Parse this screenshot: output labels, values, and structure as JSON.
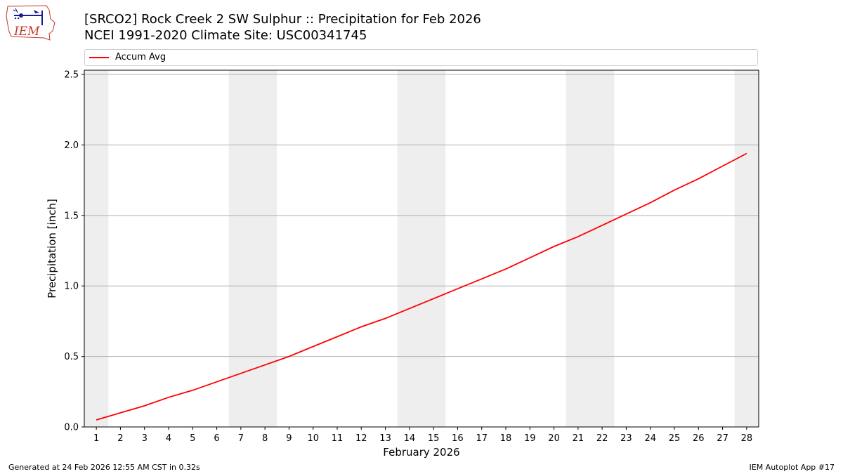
{
  "header": {
    "title_line1": "[SRCO2] Rock Creek 2 SW Sulphur :: Precipitation for Feb 2026",
    "title_line2": "NCEI 1991-2020 Climate Site: USC00341745",
    "logo_text": "IEM"
  },
  "footer": {
    "left": "Generated at 24 Feb 2026 12:55 AM CST in 0.32s",
    "right": "IEM Autoplot App #17"
  },
  "chart_data": {
    "type": "line",
    "xlabel": "February 2026",
    "ylabel": "Precipitation [inch]",
    "x": [
      1,
      2,
      3,
      4,
      5,
      6,
      7,
      8,
      9,
      10,
      11,
      12,
      13,
      14,
      15,
      16,
      17,
      18,
      19,
      20,
      21,
      22,
      23,
      24,
      25,
      26,
      27,
      28
    ],
    "xlim": [
      0.5,
      28.5
    ],
    "ylim": [
      0,
      2.53
    ],
    "yticks": [
      0.0,
      0.5,
      1.0,
      1.5,
      2.0,
      2.5
    ],
    "ytick_labels": [
      "0.0",
      "0.5",
      "1.0",
      "1.5",
      "2.0",
      "2.5"
    ],
    "grid": "horizontal",
    "weekend_shading": [
      [
        0.5,
        1.5
      ],
      [
        6.5,
        8.5
      ],
      [
        13.5,
        15.5
      ],
      [
        20.5,
        22.5
      ],
      [
        27.5,
        28.5
      ]
    ],
    "legend_position": "top",
    "series": [
      {
        "name": "Accum Avg",
        "color": "#ff0000",
        "values": [
          0.05,
          0.1,
          0.15,
          0.21,
          0.26,
          0.32,
          0.38,
          0.44,
          0.5,
          0.57,
          0.64,
          0.71,
          0.77,
          0.84,
          0.91,
          0.98,
          1.05,
          1.12,
          1.2,
          1.28,
          1.35,
          1.43,
          1.51,
          1.59,
          1.68,
          1.76,
          1.85,
          1.94
        ]
      }
    ]
  }
}
